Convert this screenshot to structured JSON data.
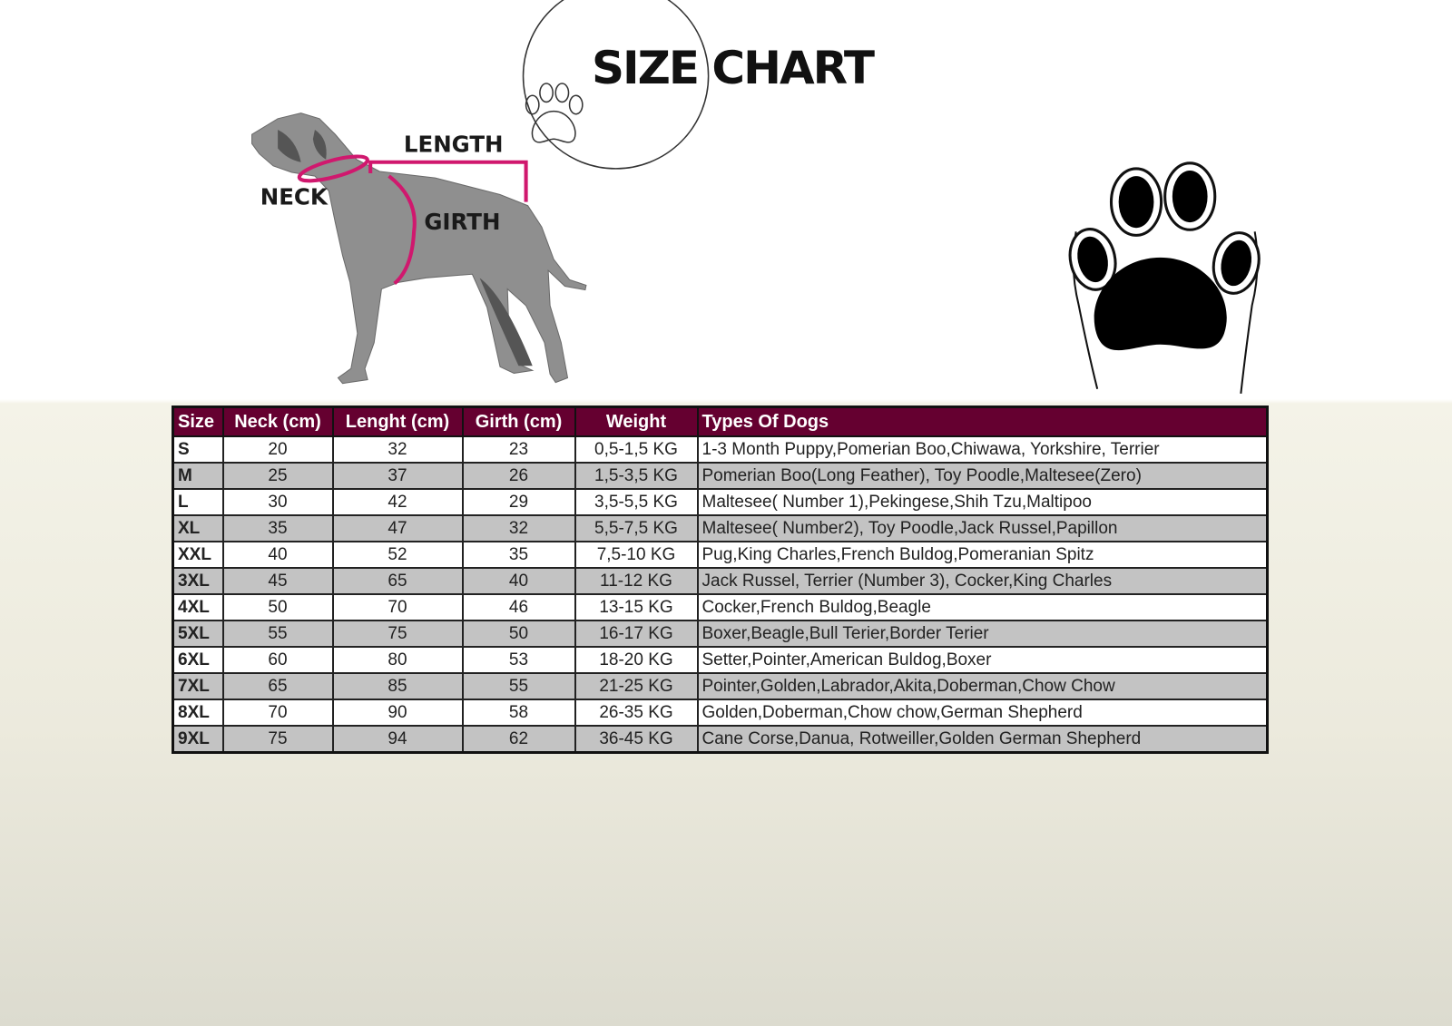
{
  "title": "SIZE CHART",
  "diagram_labels": {
    "neck": "NECK",
    "length": "LENGTH",
    "girth": "GIRTH"
  },
  "colors": {
    "header": "#650030",
    "measure_lines": "#d0186e",
    "row_alt": "#c3c3c3"
  },
  "table": {
    "headers": [
      "Size",
      "Neck (cm)",
      "Lenght (cm)",
      "Girth (cm)",
      "Weight",
      "Types Of Dogs"
    ],
    "rows": [
      [
        "S",
        "20",
        "32",
        "23",
        "0,5-1,5 KG",
        "1-3 Month Puppy,Pomerian Boo,Chiwawa, Yorkshire, Terrier"
      ],
      [
        "M",
        "25",
        "37",
        "26",
        "1,5-3,5 KG",
        "Pomerian Boo(Long Feather), Toy Poodle,Maltesee(Zero)"
      ],
      [
        "L",
        "30",
        "42",
        "29",
        "3,5-5,5 KG",
        "Maltesee( Number 1),Pekingese,Shih Tzu,Maltipoo"
      ],
      [
        "XL",
        "35",
        "47",
        "32",
        "5,5-7,5 KG",
        "Maltesee( Number2), Toy Poodle,Jack Russel,Papillon"
      ],
      [
        "XXL",
        "40",
        "52",
        "35",
        "7,5-10 KG",
        "Pug,King Charles,French Buldog,Pomeranian Spitz"
      ],
      [
        "3XL",
        "45",
        "65",
        "40",
        "11-12 KG",
        "Jack Russel, Terrier (Number 3), Cocker,King Charles"
      ],
      [
        "4XL",
        "50",
        "70",
        "46",
        "13-15 KG",
        "Cocker,French Buldog,Beagle"
      ],
      [
        "5XL",
        "55",
        "75",
        "50",
        "16-17 KG",
        "Boxer,Beagle,Bull Terier,Border Terier"
      ],
      [
        "6XL",
        "60",
        "80",
        "53",
        "18-20 KG",
        "Setter,Pointer,American Buldog,Boxer"
      ],
      [
        "7XL",
        "65",
        "85",
        "55",
        "21-25 KG",
        "Pointer,Golden,Labrador,Akita,Doberman,Chow Chow"
      ],
      [
        "8XL",
        "70",
        "90",
        "58",
        "26-35 KG",
        "Golden,Doberman,Chow chow,German Shepherd"
      ],
      [
        "9XL",
        "75",
        "94",
        "62",
        "36-45 KG",
        "Cane Corse,Danua, Rotweiller,Golden German Shepherd"
      ]
    ]
  }
}
